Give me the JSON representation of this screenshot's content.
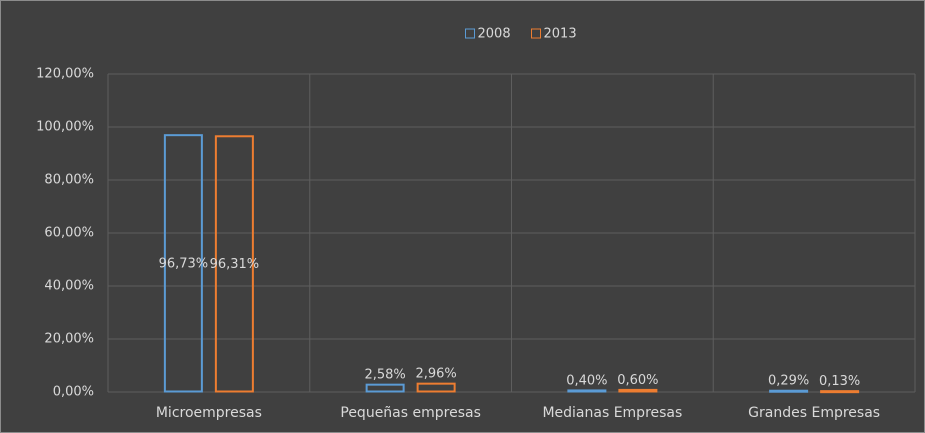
{
  "chart_data": {
    "type": "bar",
    "categories": [
      "Microempresas",
      "Pequeñas empresas",
      "Medianas Empresas",
      "Grandes Empresas"
    ],
    "series": [
      {
        "name": "2008",
        "color": "#5b9bd5",
        "values": [
          96.73,
          2.58,
          0.4,
          0.29
        ],
        "value_labels": [
          "96,73%",
          "2,58%",
          "0,40%",
          "0,29%"
        ]
      },
      {
        "name": "2013",
        "color": "#ed7d31",
        "values": [
          96.31,
          2.96,
          0.6,
          0.13
        ],
        "value_labels": [
          "96,31%",
          "2,96%",
          "0,60%",
          "0,13%"
        ]
      }
    ],
    "ylim": [
      0,
      120
    ],
    "yticks": [
      {
        "value": 0,
        "label": "0,00%"
      },
      {
        "value": 20,
        "label": "20,00%"
      },
      {
        "value": 40,
        "label": "40,00%"
      },
      {
        "value": 60,
        "label": "60,00%"
      },
      {
        "value": 80,
        "label": "80,00%"
      },
      {
        "value": 100,
        "label": "100,00%"
      },
      {
        "value": 120,
        "label": "120,00%"
      }
    ],
    "grid": true,
    "legend": "top"
  }
}
